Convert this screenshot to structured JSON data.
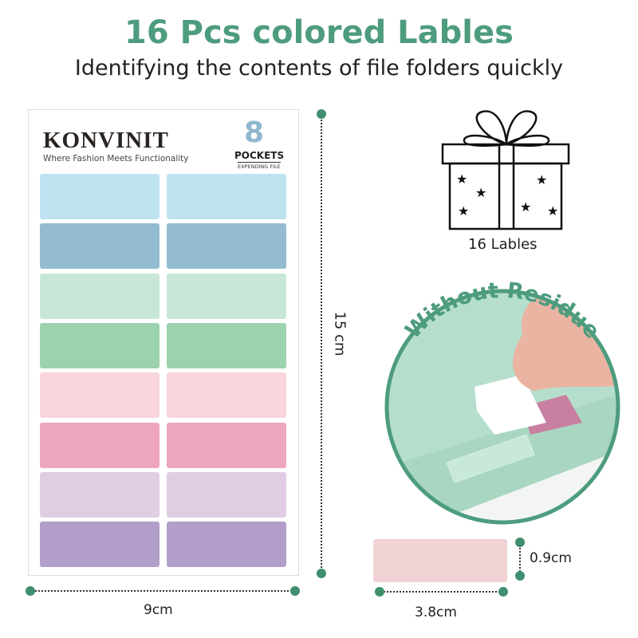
{
  "header": {
    "title": "16 Pcs colored Lables",
    "subtitle": "Identifying the contents of file folders quickly"
  },
  "sheet": {
    "brand": "KONVINIT",
    "tagline": "Where Fashion Meets Functionality",
    "pocket_number": "8",
    "pockets": "POCKETS",
    "expending": "EXPENDING FILE",
    "label_colors": [
      "#bde3f1",
      "#93bcd0",
      "#c8e6d8",
      "#9dd2ae",
      "#f8d6dc",
      "#eea6bf",
      "#e0cde4",
      "#b19fc9"
    ]
  },
  "dimensions": {
    "height": "15 cm",
    "width": "9cm",
    "label_height": "0.9cm",
    "label_width": "3.8cm"
  },
  "gift": {
    "icon": "gift-box-icon",
    "caption": "16 Lables"
  },
  "feature": {
    "text": "Without Residue"
  },
  "colors": {
    "accent": "#4d9c7d",
    "dimension": "#3f8f6e",
    "single_label": "#f1d3d5"
  }
}
